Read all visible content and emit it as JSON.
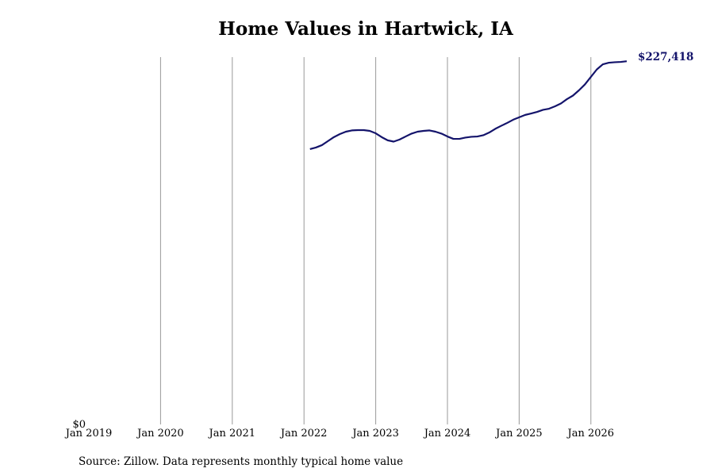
{
  "chart_data": {
    "type": "line",
    "title": "Home Values in Hartwick, IA",
    "source": "Source: Zillow. Data represents monthly typical home value",
    "x": [
      "2022-02",
      "2022-03",
      "2022-04",
      "2022-05",
      "2022-06",
      "2022-07",
      "2022-08",
      "2022-09",
      "2022-10",
      "2022-11",
      "2022-12",
      "2023-01",
      "2023-02",
      "2023-03",
      "2023-04",
      "2023-05",
      "2023-06",
      "2023-07",
      "2023-08",
      "2023-09",
      "2023-10",
      "2023-11",
      "2023-12",
      "2024-01",
      "2024-02",
      "2024-03",
      "2024-04",
      "2024-05",
      "2024-06",
      "2024-07",
      "2024-08",
      "2024-09",
      "2024-10",
      "2024-11",
      "2024-12",
      "2025-01",
      "2025-02",
      "2025-03",
      "2025-04",
      "2025-05",
      "2025-06",
      "2025-07",
      "2025-08",
      "2025-09",
      "2025-10",
      "2025-11",
      "2025-12",
      "2026-01",
      "2026-02",
      "2026-03",
      "2026-04",
      "2026-05",
      "2026-06",
      "2026-07"
    ],
    "series": [
      {
        "name": "Home value",
        "color": "#14146b",
        "values": [
          172400,
          173400,
          174900,
          177400,
          179900,
          181800,
          183300,
          184100,
          184300,
          184300,
          183800,
          182300,
          179900,
          177900,
          177100,
          178400,
          180300,
          182100,
          183300,
          183800,
          184100,
          183300,
          182100,
          180300,
          178800,
          178800,
          179600,
          180100,
          180300,
          181100,
          182800,
          185100,
          187000,
          188800,
          190800,
          192300,
          193800,
          194700,
          195700,
          197000,
          197700,
          199200,
          201000,
          203700,
          205900,
          209200,
          212900,
          217600,
          222300,
          225500,
          226500,
          226800,
          227000,
          227418
        ],
        "value_labels": [
          null,
          null,
          null,
          null,
          null,
          null,
          null,
          null,
          null,
          null,
          null,
          null,
          null,
          null,
          null,
          null,
          null,
          null,
          null,
          null,
          null,
          null,
          null,
          null,
          null,
          null,
          null,
          null,
          null,
          null,
          null,
          null,
          null,
          null,
          null,
          null,
          null,
          null,
          null,
          null,
          null,
          null,
          null,
          null,
          null,
          null,
          null,
          null,
          null,
          null,
          null,
          null,
          null,
          "$227,418"
        ]
      }
    ],
    "xlim": [
      "2019-01",
      "2026-07"
    ],
    "xticks": [
      {
        "value": "2019-01",
        "label": "Jan 2019"
      },
      {
        "value": "2020-01",
        "label": "Jan 2020"
      },
      {
        "value": "2021-01",
        "label": "Jan 2021"
      },
      {
        "value": "2022-01",
        "label": "Jan 2022"
      },
      {
        "value": "2023-01",
        "label": "Jan 2023"
      },
      {
        "value": "2024-01",
        "label": "Jan 2024"
      },
      {
        "value": "2025-01",
        "label": "Jan 2025"
      },
      {
        "value": "2026-01",
        "label": "Jan 2026"
      }
    ],
    "ylim": [
      0,
      230000
    ],
    "yticks": [
      {
        "value": 0,
        "label": "$0"
      }
    ],
    "grid": "x"
  }
}
